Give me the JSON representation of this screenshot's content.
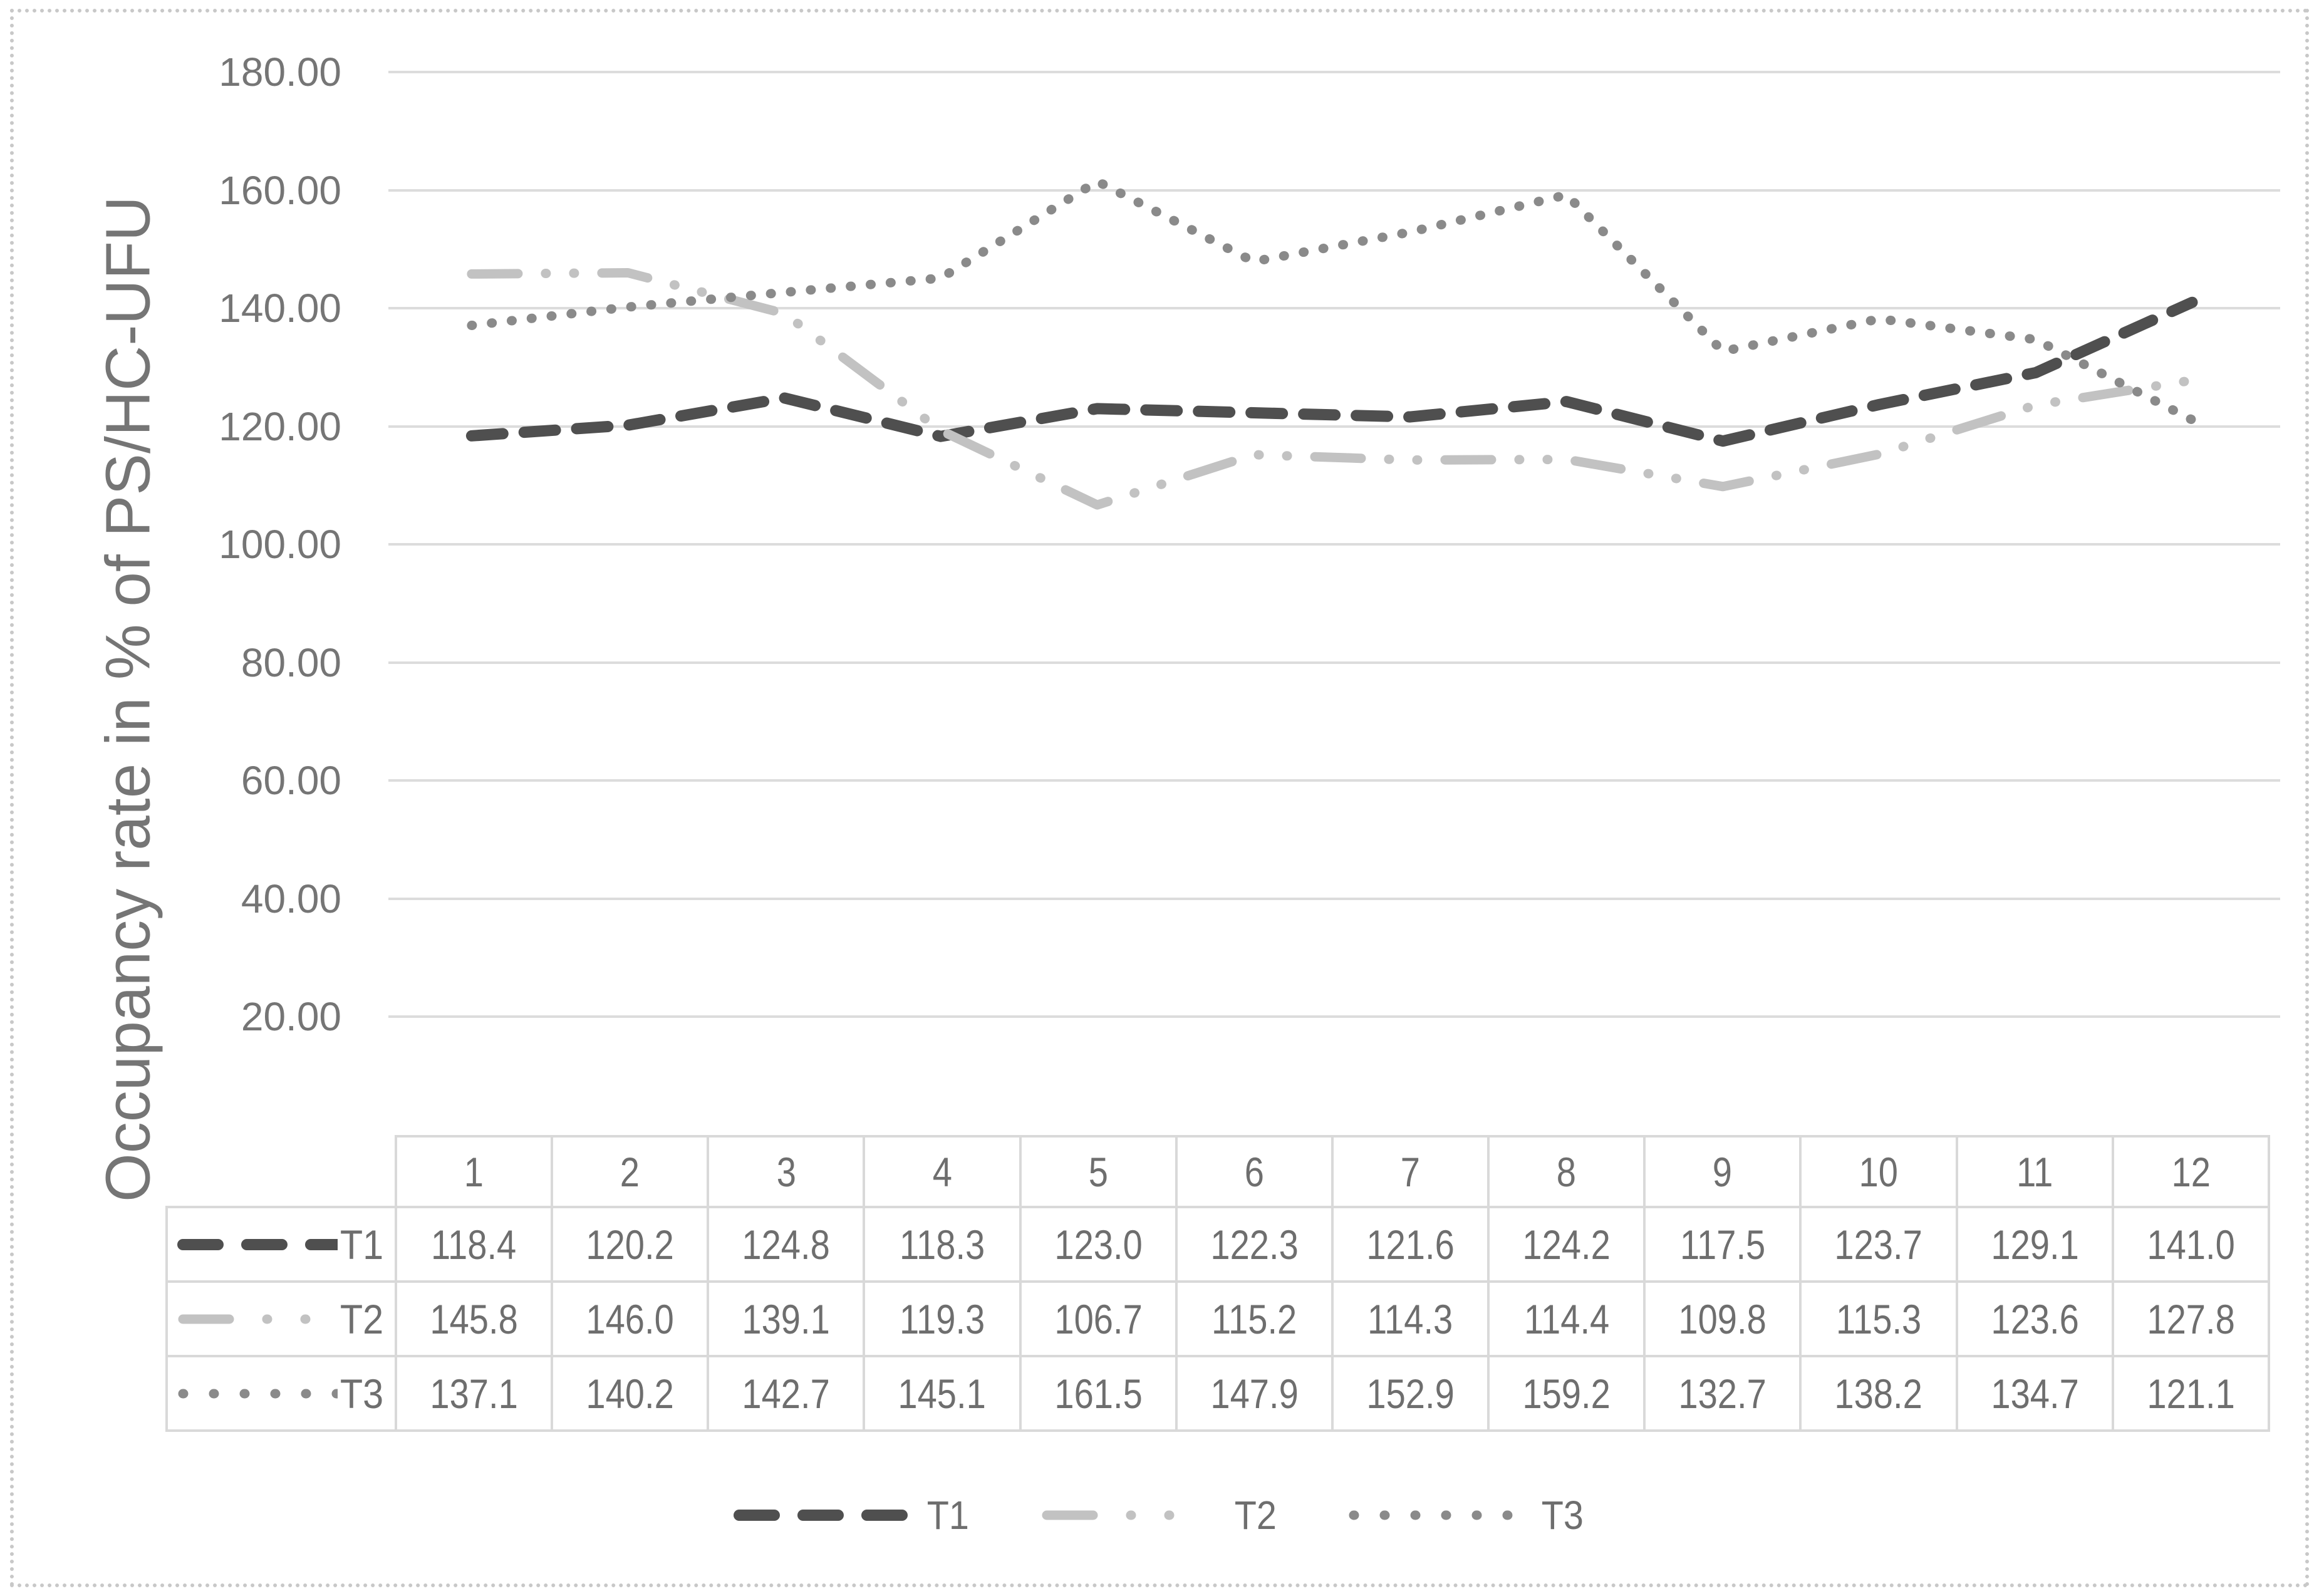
{
  "page": {
    "background": "#ffffff",
    "border_color": "#c8c8c8"
  },
  "chart_data": {
    "type": "line",
    "title": "",
    "xlabel": "",
    "ylabel": "Occupancy rate in % of PS/HC-UFU",
    "ylim": [
      0,
      180
    ],
    "ytick_step": 20,
    "ytick_values": [
      180,
      160,
      140,
      120,
      100,
      80,
      60,
      40,
      20,
      0
    ],
    "ytick_labels": [
      "180.00",
      "160.00",
      "140.00",
      "120.00",
      "100.00",
      "80.00",
      "60.00",
      "40.00",
      "20.00",
      "-"
    ],
    "grid": "horizontal",
    "gridline_color": "#dcdcdc",
    "axis_text_color": "#757575",
    "legend_position": "bottom",
    "categories": [
      "1",
      "2",
      "3",
      "4",
      "5",
      "6",
      "7",
      "8",
      "9",
      "10",
      "11",
      "12"
    ],
    "series": [
      {
        "name": "T1",
        "color": "#4f4f4f",
        "line_style": "dash",
        "values": [
          118.4,
          120.2,
          124.8,
          118.3,
          123.0,
          122.3,
          121.6,
          124.2,
          117.5,
          123.7,
          129.1,
          141.0
        ]
      },
      {
        "name": "T2",
        "color": "#c2c2c2",
        "line_style": "dash-dot-dot",
        "values": [
          145.8,
          146.0,
          139.1,
          119.3,
          106.7,
          115.2,
          114.3,
          114.4,
          109.8,
          115.3,
          123.6,
          127.8
        ]
      },
      {
        "name": "T3",
        "color": "#8a8a8a",
        "line_style": "dot",
        "values": [
          137.1,
          140.2,
          142.7,
          145.1,
          161.5,
          147.9,
          152.9,
          159.2,
          132.7,
          138.2,
          134.7,
          121.1
        ]
      }
    ],
    "data_table": {
      "shown": true,
      "value_format": "0.0"
    }
  }
}
